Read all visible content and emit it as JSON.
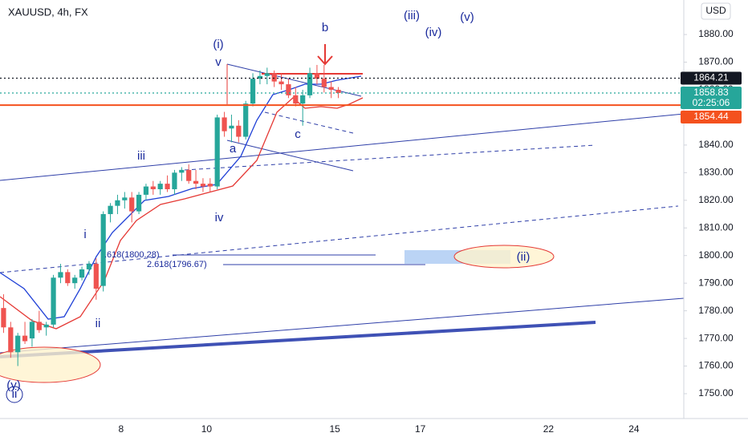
{
  "chart_data": {
    "type": "candlestick",
    "title": "XAUUSD, 4h, FX",
    "currency": "USD",
    "categories": [
      null,
      null,
      null,
      null,
      null,
      null,
      null,
      null,
      null,
      null,
      null,
      null,
      null,
      null,
      null,
      null,
      null,
      "8",
      null,
      null,
      null,
      null,
      null,
      null,
      null,
      null,
      null,
      null,
      null,
      "10",
      null,
      null,
      null,
      null,
      null,
      null,
      null,
      null,
      null,
      null,
      null,
      null,
      null,
      null,
      null,
      null,
      null,
      "15",
      null,
      null,
      null,
      null,
      null,
      null,
      null,
      null,
      null,
      null,
      null,
      "17",
      null,
      null,
      null,
      null,
      null,
      null,
      null,
      null,
      null,
      null,
      null,
      null,
      null,
      null,
      null,
      null,
      null,
      "22",
      null,
      null,
      null,
      null,
      null,
      null,
      null,
      null,
      null,
      null,
      null,
      "24",
      null,
      null,
      null,
      null,
      null,
      null
    ],
    "open": [
      1781,
      1774,
      1765,
      1771,
      1770,
      1776,
      1774,
      1775,
      1792,
      1794,
      1790,
      1792,
      1795,
      1797,
      1789,
      1815,
      1818,
      1820,
      1821,
      1816,
      1822,
      1825,
      1824,
      1826,
      1824,
      1830,
      1831,
      1827,
      1826,
      1826,
      1825,
      1850,
      1846,
      1847,
      1843,
      1855,
      1864,
      1865,
      1866,
      1863,
      1862,
      1858,
      1855,
      1858,
      1866,
      1864,
      1861,
      1860,
      null,
      null,
      null,
      null,
      null,
      null,
      null,
      null,
      null,
      null,
      null,
      null,
      null,
      null,
      null,
      null,
      null,
      null,
      null,
      null,
      null,
      null,
      null,
      null,
      null,
      null,
      null,
      null,
      null,
      null,
      null,
      null,
      null,
      null,
      null,
      null,
      null,
      null,
      null,
      null,
      null,
      null,
      null,
      null,
      null,
      null,
      null,
      null
    ],
    "high": [
      1786,
      1776,
      1772,
      1776,
      1777,
      1780,
      1776,
      1793,
      1797,
      1795,
      1793,
      1796,
      1798,
      1799,
      1816,
      1819,
      1822,
      1823,
      1823,
      1823,
      1826,
      1827,
      1827,
      1829,
      1831,
      1832,
      1833,
      1831,
      1828,
      1828,
      1851,
      1852,
      1851,
      1849,
      1856,
      1866,
      1867,
      1868,
      1867,
      1866,
      1864,
      1861,
      1860,
      1868,
      1869,
      1869,
      1863,
      1861,
      null,
      null,
      null,
      null,
      null,
      null,
      null,
      null,
      null,
      null,
      null,
      null,
      null,
      null,
      null,
      null,
      null,
      null,
      null,
      null,
      null,
      null,
      null,
      null,
      null,
      null,
      null,
      null,
      null,
      null,
      null,
      null,
      null,
      null,
      null,
      null,
      null,
      null,
      null,
      null,
      null,
      null,
      null,
      null,
      null,
      null,
      null,
      null
    ],
    "low": [
      1772,
      1763,
      1760,
      1768,
      1767,
      1772,
      1771,
      1774,
      1790,
      1789,
      1788,
      1791,
      1793,
      1784,
      1787,
      1812,
      1815,
      1817,
      1812,
      1815,
      1820,
      1822,
      1822,
      1823,
      1822,
      1827,
      1826,
      1824,
      1823,
      1823,
      1824,
      1843,
      1841,
      1841,
      1842,
      1854,
      1862,
      1862,
      1861,
      1860,
      1857,
      1854,
      1847,
      1857,
      1862,
      1859,
      1857,
      1857,
      null,
      null,
      null,
      null,
      null,
      null,
      null,
      null,
      null,
      null,
      null,
      null,
      null,
      null,
      null,
      null,
      null,
      null,
      null,
      null,
      null,
      null,
      null,
      null,
      null,
      null,
      null,
      null,
      null,
      null,
      null,
      null,
      null,
      null,
      null,
      null,
      null,
      null,
      null,
      null,
      null,
      null,
      null,
      null,
      null,
      null,
      null,
      null
    ],
    "close": [
      1774,
      1765,
      1771,
      1769,
      1776,
      1773,
      1775,
      1792,
      1794,
      1790,
      1792,
      1795,
      1797,
      1788,
      1815,
      1818,
      1820,
      1821,
      1816,
      1822,
      1825,
      1824,
      1826,
      1824,
      1830,
      1831,
      1827,
      1826,
      1825,
      1825,
      1850,
      1845,
      1847,
      1843,
      1855,
      1864,
      1865,
      1866,
      1863,
      1862,
      1858,
      1855,
      1858,
      1866,
      1864,
      1861,
      1860,
      1858.83,
      null,
      null,
      null,
      null,
      null,
      null,
      null,
      null,
      null,
      null,
      null,
      null,
      null,
      null,
      null,
      null,
      null,
      null,
      null,
      null,
      null,
      null,
      null,
      null,
      null,
      null,
      null,
      null,
      null,
      null,
      null,
      null,
      null,
      null,
      null,
      null,
      null,
      null,
      null,
      null,
      null,
      null,
      null,
      null,
      null,
      null,
      null,
      null
    ],
    "up_color": "#26a69a",
    "down_color": "#ef5350",
    "ylim": [
      1741,
      1892.5
    ],
    "yticks": [
      {
        "value": 1750,
        "label": "1750.00"
      },
      {
        "value": 1760,
        "label": "1760.00"
      },
      {
        "value": 1770,
        "label": "1770.00"
      },
      {
        "value": 1780,
        "label": "1780.00"
      },
      {
        "value": 1790,
        "label": "1790.00"
      },
      {
        "value": 1800,
        "label": "1800.00"
      },
      {
        "value": 1810,
        "label": "1810.00"
      },
      {
        "value": 1820,
        "label": "1820.00"
      },
      {
        "value": 1830,
        "label": "1830.00"
      },
      {
        "value": 1840,
        "label": "1840.00"
      },
      {
        "value": 1850,
        "label": "1850.00"
      },
      {
        "value": 1860,
        "label": "1860.00"
      },
      {
        "value": 1870,
        "label": "1870.00"
      },
      {
        "value": 1880,
        "label": "1880.00"
      }
    ],
    "price_lines": [
      {
        "value": 1864.21,
        "label": "1864.21",
        "color": "#131722",
        "style": "dotted"
      },
      {
        "value": 1858.83,
        "label": "1858.83",
        "color": "#26a69a",
        "style": "dotted",
        "countdown": "02:25:06"
      },
      {
        "value": 1854.44,
        "label": "1854.44",
        "color": "#f4511e",
        "style": "solid"
      }
    ],
    "annotations": [
      "(i)",
      "v",
      "b",
      "(iii)",
      "(iv)",
      "(v)",
      "iii",
      "a",
      "c",
      "iv",
      "i",
      "ii",
      "(y)",
      "ii",
      "(ii)",
      ".618(1800.28)",
      "2.618(1796.67)"
    ]
  }
}
